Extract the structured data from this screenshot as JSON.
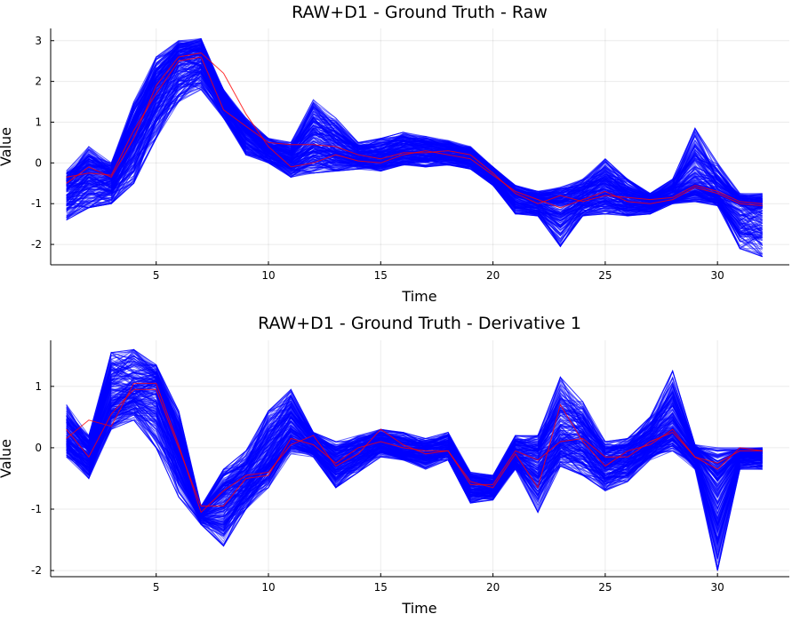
{
  "chart_data": [
    {
      "type": "line",
      "title": "RAW+D1 - Ground Truth - Raw",
      "xlabel": "Time",
      "ylabel": "Value",
      "xlim": [
        0.3,
        33.2
      ],
      "ylim": [
        -2.5,
        3.3
      ],
      "xticks": [
        5,
        10,
        15,
        20,
        25,
        30
      ],
      "yticks": [
        -2,
        -1,
        0,
        1,
        2,
        3
      ],
      "grid": true,
      "legend": "none",
      "colors": {
        "ensemble": "#0000ff",
        "highlight": "#ff0000"
      },
      "x": [
        1,
        2,
        3,
        4,
        5,
        6,
        7,
        8,
        9,
        10,
        11,
        12,
        13,
        14,
        15,
        16,
        17,
        18,
        19,
        20,
        21,
        22,
        23,
        24,
        25,
        26,
        27,
        28,
        29,
        30,
        31,
        32
      ],
      "series": [
        {
          "role": "ensemble-upper",
          "values": [
            -0.2,
            0.4,
            0.0,
            1.5,
            2.6,
            3.0,
            3.05,
            1.8,
            1.1,
            0.6,
            0.5,
            1.55,
            1.1,
            0.5,
            0.6,
            0.75,
            0.65,
            0.55,
            0.4,
            -0.1,
            -0.55,
            -0.7,
            -0.6,
            -0.4,
            0.1,
            -0.4,
            -0.75,
            -0.4,
            0.85,
            0.0,
            -0.75,
            -0.75
          ]
        },
        {
          "role": "ensemble-lower",
          "values": [
            -1.4,
            -1.1,
            -1.0,
            -0.5,
            0.6,
            1.5,
            1.8,
            1.1,
            0.2,
            0.0,
            -0.35,
            -0.25,
            -0.2,
            -0.15,
            -0.2,
            -0.05,
            -0.1,
            -0.05,
            -0.15,
            -0.55,
            -1.25,
            -1.3,
            -2.05,
            -1.3,
            -1.25,
            -1.3,
            -1.25,
            -1.0,
            -0.95,
            -1.05,
            -2.1,
            -2.3
          ]
        },
        {
          "role": "ensemble-center",
          "values": [
            -0.6,
            -0.3,
            -0.4,
            0.7,
            1.8,
            2.55,
            2.65,
            1.5,
            0.75,
            0.3,
            0.1,
            0.5,
            0.35,
            0.15,
            0.15,
            0.3,
            0.3,
            0.25,
            0.15,
            -0.3,
            -0.8,
            -0.95,
            -1.0,
            -0.85,
            -0.65,
            -0.9,
            -0.95,
            -0.8,
            -0.5,
            -0.75,
            -1.05,
            -1.1
          ]
        },
        {
          "role": "highlight",
          "values": [
            -0.5,
            -0.1,
            -0.35,
            0.6,
            1.9,
            2.6,
            2.7,
            2.2,
            1.2,
            0.4,
            -0.1,
            0.0,
            0.2,
            0.05,
            0.0,
            0.2,
            0.3,
            0.2,
            0.1,
            -0.3,
            -0.7,
            -0.9,
            -1.1,
            -0.9,
            -0.7,
            -0.95,
            -1.0,
            -0.9,
            -0.6,
            -0.75,
            -1.0,
            -1.05
          ]
        },
        {
          "role": "highlight",
          "values": [
            -0.35,
            -0.25,
            -0.3,
            0.8,
            1.7,
            2.5,
            2.6,
            1.3,
            0.9,
            0.5,
            0.45,
            0.45,
            0.4,
            0.2,
            0.1,
            0.25,
            0.25,
            0.3,
            0.2,
            -0.25,
            -0.75,
            -1.0,
            -0.8,
            -0.95,
            -0.8,
            -0.85,
            -0.9,
            -0.85,
            -0.55,
            -0.7,
            -0.95,
            -1.0
          ]
        }
      ]
    },
    {
      "type": "line",
      "title": "RAW+D1 - Ground Truth - Derivative 1",
      "xlabel": "Time",
      "ylabel": "Value",
      "xlim": [
        0.3,
        33.2
      ],
      "ylim": [
        -2.1,
        1.75
      ],
      "xticks": [
        5,
        10,
        15,
        20,
        25,
        30
      ],
      "yticks": [
        -2,
        -1,
        0,
        1
      ],
      "grid": true,
      "legend": "none",
      "colors": {
        "ensemble": "#0000ff",
        "highlight": "#ff0000"
      },
      "x": [
        1,
        2,
        3,
        4,
        5,
        6,
        7,
        8,
        9,
        10,
        11,
        12,
        13,
        14,
        15,
        16,
        17,
        18,
        19,
        20,
        21,
        22,
        23,
        24,
        25,
        26,
        27,
        28,
        29,
        30,
        31,
        32
      ],
      "series": [
        {
          "role": "ensemble-upper",
          "values": [
            0.7,
            0.2,
            1.55,
            1.6,
            1.35,
            0.6,
            -0.95,
            -0.35,
            -0.05,
            0.6,
            0.95,
            0.25,
            0.1,
            0.2,
            0.3,
            0.25,
            0.15,
            0.25,
            -0.4,
            -0.45,
            0.2,
            0.2,
            1.15,
            0.75,
            0.1,
            0.15,
            0.5,
            1.25,
            0.05,
            0.0,
            0.0,
            0.0
          ]
        },
        {
          "role": "ensemble-lower",
          "values": [
            -0.15,
            -0.5,
            0.3,
            0.45,
            0.0,
            -0.8,
            -1.25,
            -1.6,
            -1.0,
            -0.65,
            -0.1,
            -0.15,
            -0.65,
            -0.4,
            -0.15,
            -0.2,
            -0.35,
            -0.2,
            -0.9,
            -0.85,
            -0.35,
            -1.05,
            -0.3,
            -0.45,
            -0.7,
            -0.55,
            -0.2,
            -0.05,
            -0.35,
            -2.0,
            -0.35,
            -0.35
          ]
        },
        {
          "role": "ensemble-center",
          "values": [
            0.2,
            -0.1,
            0.8,
            0.95,
            1.0,
            0.05,
            -1.05,
            -0.8,
            -0.55,
            -0.1,
            0.35,
            0.05,
            -0.25,
            -0.05,
            0.1,
            -0.05,
            -0.05,
            0.0,
            -0.6,
            -0.65,
            -0.1,
            -0.2,
            0.2,
            0.15,
            -0.25,
            -0.15,
            0.1,
            0.35,
            -0.1,
            -0.55,
            -0.1,
            -0.1
          ]
        },
        {
          "role": "highlight",
          "values": [
            0.15,
            0.45,
            0.35,
            1.05,
            1.05,
            0.05,
            -1.05,
            -0.7,
            -0.45,
            -0.4,
            0.05,
            0.2,
            -0.3,
            -0.1,
            0.3,
            0.05,
            -0.1,
            -0.05,
            -0.55,
            -0.65,
            -0.1,
            -0.65,
            0.7,
            0.1,
            -0.3,
            -0.05,
            0.05,
            0.3,
            -0.15,
            -0.35,
            0.0,
            -0.05
          ]
        },
        {
          "role": "highlight",
          "values": [
            0.3,
            -0.15,
            0.55,
            0.95,
            0.95,
            0.0,
            -0.95,
            -0.95,
            -0.5,
            -0.45,
            0.15,
            0.05,
            -0.25,
            0.0,
            0.1,
            0.0,
            -0.05,
            -0.05,
            -0.6,
            -0.6,
            -0.05,
            -0.2,
            0.1,
            0.15,
            -0.15,
            -0.15,
            0.1,
            0.25,
            -0.15,
            -0.25,
            -0.05,
            -0.05
          ]
        }
      ]
    }
  ]
}
